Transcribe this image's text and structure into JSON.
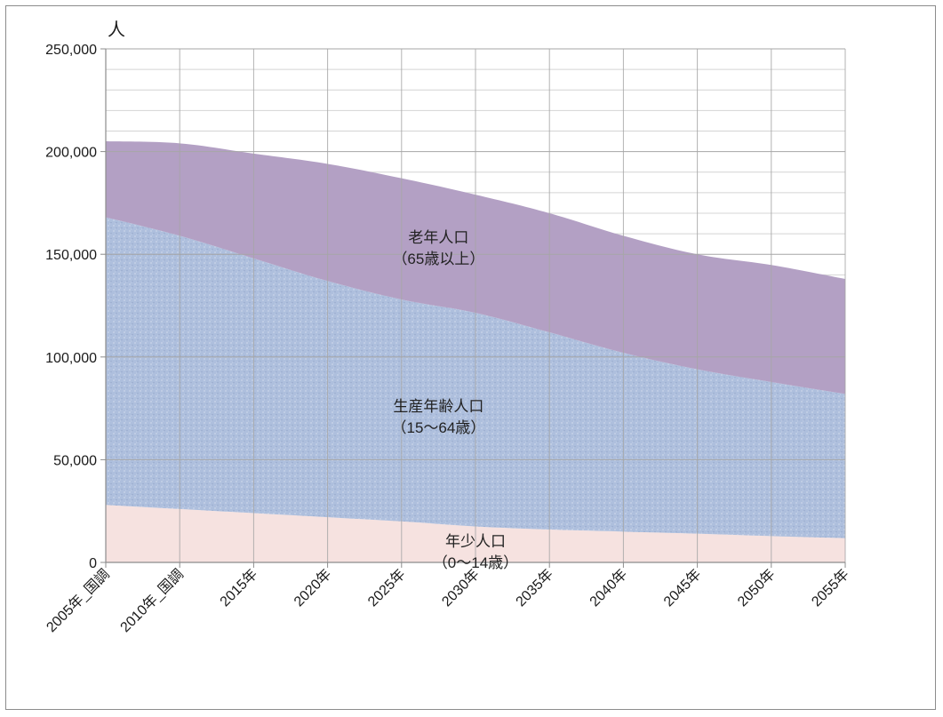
{
  "chart_data": {
    "type": "area",
    "stacked": true,
    "ylabel": "人",
    "ylim": [
      0,
      250000
    ],
    "yticks": [
      0,
      50000,
      100000,
      150000,
      200000,
      250000
    ],
    "ytick_labels": [
      "0",
      "50,000",
      "100,000",
      "150,000",
      "200,000",
      "250,000"
    ],
    "grid": true,
    "categories": [
      "2005年_国調",
      "2010年_国調",
      "2015年",
      "2020年",
      "2025年",
      "2030年",
      "2035年",
      "2040年",
      "2045年",
      "2050年",
      "2055年"
    ],
    "series": [
      {
        "label_line1": "年少人口",
        "label_line2": "（0〜14歳）",
        "color": "#f6e2e0",
        "values": [
          28000,
          26000,
          24000,
          22000,
          20000,
          17500,
          16000,
          15000,
          14000,
          12800,
          11800
        ]
      },
      {
        "label_line1": "生産年齢人口",
        "label_line2": "（15〜64歳）",
        "color": "#aebfdd",
        "values": [
          140000,
          133000,
          124000,
          115000,
          108000,
          104000,
          96000,
          87000,
          80000,
          75000,
          70200
        ]
      },
      {
        "label_line1": "老年人口",
        "label_line2": "（65歳以上）",
        "color": "#b3a0c4",
        "values": [
          37000,
          45000,
          51000,
          57000,
          59000,
          57500,
          58000,
          57000,
          56000,
          57000,
          56000
        ]
      }
    ]
  }
}
